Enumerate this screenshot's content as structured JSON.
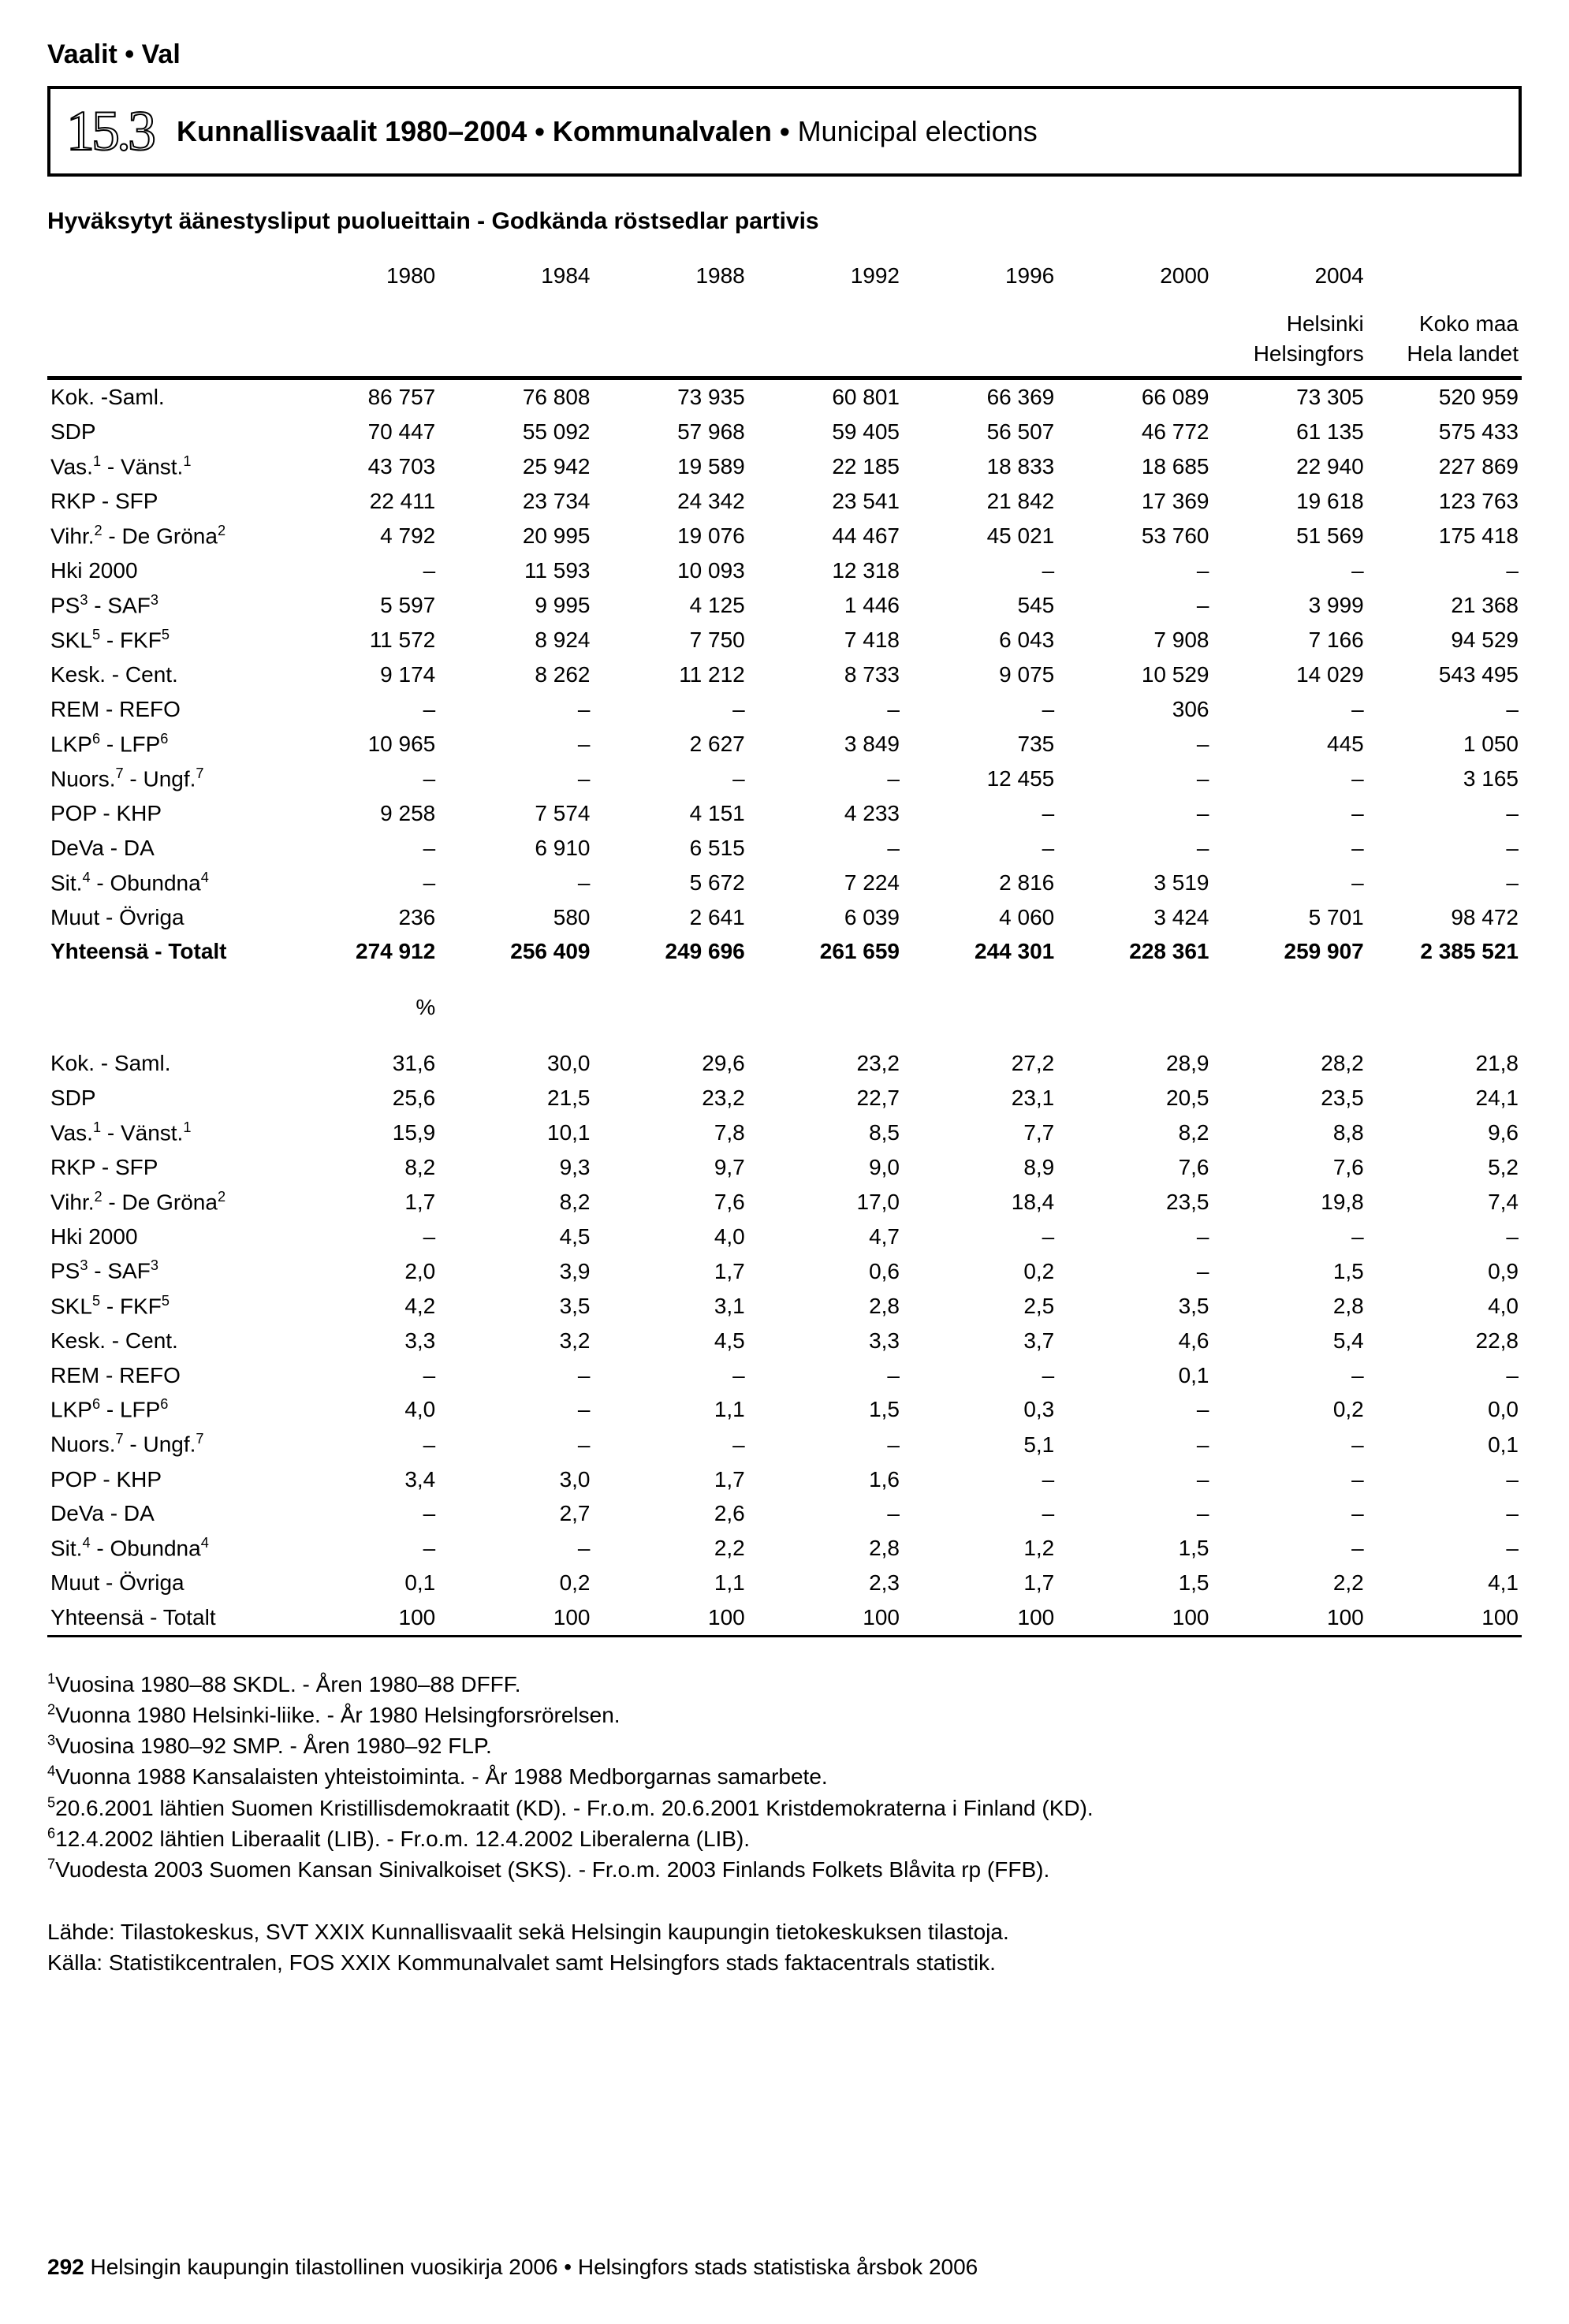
{
  "chapter_label": "Vaalit • Val",
  "section_number": "15.3",
  "title_parts": {
    "p1": "Kunnallisvaalit 1980–2004 • Kommunalvalen • ",
    "p2": "Municipal elections"
  },
  "subtitle": "Hyväksytyt äänestysliput puolueittain - Godkända röstsedlar partivis",
  "years": [
    "1980",
    "1984",
    "1988",
    "1992",
    "1996",
    "2000",
    "2004",
    ""
  ],
  "subheads": [
    "",
    "",
    "",
    "",
    "",
    "",
    "",
    "Helsinki Helsingfors",
    "Koko maa Hela landet"
  ],
  "abs_rows": [
    {
      "label": "Kok. -Saml.",
      "v": [
        "86 757",
        "76 808",
        "73 935",
        "60 801",
        "66 369",
        "66 089",
        "73 305",
        "520 959"
      ]
    },
    {
      "label": "SDP",
      "v": [
        "70 447",
        "55 092",
        "57 968",
        "59 405",
        "56 507",
        "46 772",
        "61 135",
        "575 433"
      ]
    },
    {
      "label": "Vas.¹ - Vänst.¹",
      "v": [
        "43 703",
        "25 942",
        "19 589",
        "22 185",
        "18 833",
        "18 685",
        "22 940",
        "227 869"
      ]
    },
    {
      "label": "RKP - SFP",
      "v": [
        "22 411",
        "23 734",
        "24 342",
        "23 541",
        "21 842",
        "17 369",
        "19 618",
        "123 763"
      ]
    },
    {
      "label": "Vihr.² - De Gröna²",
      "v": [
        "4 792",
        "20 995",
        "19 076",
        "44 467",
        "45 021",
        "53 760",
        "51 569",
        "175 418"
      ]
    },
    {
      "label": "Hki 2000",
      "v": [
        "–",
        "11 593",
        "10 093",
        "12 318",
        "–",
        "–",
        "–",
        "–"
      ]
    },
    {
      "label": "PS³ - SAF³",
      "v": [
        "5 597",
        "9 995",
        "4 125",
        "1 446",
        "545",
        "–",
        "3 999",
        "21 368"
      ]
    },
    {
      "label": "SKL⁵ - FKF⁵",
      "v": [
        "11 572",
        "8 924",
        "7 750",
        "7 418",
        "6 043",
        "7 908",
        "7 166",
        "94 529"
      ]
    },
    {
      "label": "Kesk. - Cent.",
      "v": [
        "9 174",
        "8 262",
        "11 212",
        "8 733",
        "9 075",
        "10 529",
        "14 029",
        "543 495"
      ]
    },
    {
      "label": "REM - REFO",
      "v": [
        "–",
        "–",
        "–",
        "–",
        "–",
        "306",
        "–",
        "–"
      ]
    },
    {
      "label": "LKP⁶ - LFP⁶",
      "v": [
        "10 965",
        "–",
        "2 627",
        "3 849",
        "735",
        "–",
        "445",
        "1 050"
      ]
    },
    {
      "label": "Nuors.⁷ - Ungf.⁷",
      "v": [
        "–",
        "–",
        "–",
        "–",
        "12 455",
        "–",
        "–",
        "3 165"
      ]
    },
    {
      "label": "POP - KHP",
      "v": [
        "9 258",
        "7 574",
        "4 151",
        "4 233",
        "–",
        "–",
        "–",
        "–"
      ]
    },
    {
      "label": "DeVa - DA",
      "v": [
        "–",
        "6 910",
        "6 515",
        "–",
        "–",
        "–",
        "–",
        "–"
      ]
    },
    {
      "label": "Sit.⁴ - Obundna⁴",
      "v": [
        "–",
        "–",
        "5 672",
        "7 224",
        "2 816",
        "3 519",
        "–",
        "–"
      ]
    },
    {
      "label": "Muut - Övriga",
      "v": [
        "236",
        "580",
        "2 641",
        "6 039",
        "4 060",
        "3 424",
        "5 701",
        "98 472"
      ]
    }
  ],
  "abs_total": {
    "label": "Yhteensä - Totalt",
    "v": [
      "274 912",
      "256 409",
      "249 696",
      "261 659",
      "244 301",
      "228 361",
      "259 907",
      "2 385 521"
    ]
  },
  "pct_label": "%",
  "pct_rows": [
    {
      "label": "Kok. - Saml.",
      "v": [
        "31,6",
        "30,0",
        "29,6",
        "23,2",
        "27,2",
        "28,9",
        "28,2",
        "21,8"
      ]
    },
    {
      "label": "SDP",
      "v": [
        "25,6",
        "21,5",
        "23,2",
        "22,7",
        "23,1",
        "20,5",
        "23,5",
        "24,1"
      ]
    },
    {
      "label": "Vas.¹ - Vänst.¹",
      "v": [
        "15,9",
        "10,1",
        "7,8",
        "8,5",
        "7,7",
        "8,2",
        "8,8",
        "9,6"
      ]
    },
    {
      "label": "RKP - SFP",
      "v": [
        "8,2",
        "9,3",
        "9,7",
        "9,0",
        "8,9",
        "7,6",
        "7,6",
        "5,2"
      ]
    },
    {
      "label": "Vihr.² - De Gröna²",
      "v": [
        "1,7",
        "8,2",
        "7,6",
        "17,0",
        "18,4",
        "23,5",
        "19,8",
        "7,4"
      ]
    },
    {
      "label": "Hki 2000",
      "v": [
        "–",
        "4,5",
        "4,0",
        "4,7",
        "–",
        "–",
        "–",
        "–"
      ]
    },
    {
      "label": "PS³ - SAF³",
      "v": [
        "2,0",
        "3,9",
        "1,7",
        "0,6",
        "0,2",
        "–",
        "1,5",
        "0,9"
      ]
    },
    {
      "label": "SKL⁵ - FKF⁵",
      "v": [
        "4,2",
        "3,5",
        "3,1",
        "2,8",
        "2,5",
        "3,5",
        "2,8",
        "4,0"
      ]
    },
    {
      "label": "Kesk. - Cent.",
      "v": [
        "3,3",
        "3,2",
        "4,5",
        "3,3",
        "3,7",
        "4,6",
        "5,4",
        "22,8"
      ]
    },
    {
      "label": "REM - REFO",
      "v": [
        "–",
        "–",
        "–",
        "–",
        "–",
        "0,1",
        "–",
        "–"
      ]
    },
    {
      "label": "LKP⁶ - LFP⁶",
      "v": [
        "4,0",
        "–",
        "1,1",
        "1,5",
        "0,3",
        "–",
        "0,2",
        "0,0"
      ]
    },
    {
      "label": "Nuors.⁷ - Ungf.⁷",
      "v": [
        "–",
        "–",
        "–",
        "–",
        "5,1",
        "–",
        "–",
        "0,1"
      ]
    },
    {
      "label": "POP - KHP",
      "v": [
        "3,4",
        "3,0",
        "1,7",
        "1,6",
        "–",
        "–",
        "–",
        "–"
      ]
    },
    {
      "label": "DeVa - DA",
      "v": [
        "–",
        "2,7",
        "2,6",
        "–",
        "–",
        "–",
        "–",
        "–"
      ]
    },
    {
      "label": "Sit.⁴ - Obundna⁴",
      "v": [
        "–",
        "–",
        "2,2",
        "2,8",
        "1,2",
        "1,5",
        "–",
        "–"
      ]
    },
    {
      "label": "Muut - Övriga",
      "v": [
        "0,1",
        "0,2",
        "1,1",
        "2,3",
        "1,7",
        "1,5",
        "2,2",
        "4,1"
      ]
    }
  ],
  "pct_total": {
    "label": "Yhteensä - Totalt",
    "v": [
      "100",
      "100",
      "100",
      "100",
      "100",
      "100",
      "100",
      "100"
    ]
  },
  "footnotes": [
    "¹Vuosina 1980–88 SKDL. - Åren 1980–88 DFFF.",
    "²Vuonna 1980 Helsinki-liike. - År 1980 Helsingforsrörelsen.",
    "³Vuosina 1980–92 SMP. - Åren 1980–92 FLP.",
    "⁴Vuonna 1988 Kansalaisten yhteistoiminta. - År 1988 Medborgarnas samarbete.",
    "⁵20.6.2001 lähtien Suomen Kristillisdemokraatit (KD). - Fr.o.m. 20.6.2001 Kristdemokraterna i Finland (KD).",
    "⁶12.4.2002 lähtien Liberaalit (LIB). - Fr.o.m. 12.4.2002 Liberalerna (LIB).",
    "⁷Vuodesta 2003 Suomen Kansan Sinivalkoiset (SKS). - Fr.o.m. 2003 Finlands Folkets Blåvita rp (FFB)."
  ],
  "sources": [
    "Lähde: Tilastokeskus, SVT XXIX Kunnallisvaalit sekä Helsingin kaupungin tietokeskuksen tilastoja.",
    "Källa: Statistikcentralen, FOS XXIX Kommunalvalet samt Helsingfors stads faktacentrals statistik."
  ],
  "page_number": "292",
  "footer_text": "Helsingin kaupungin tilastollinen vuosikirja 2006 • Helsingfors stads statistiska årsbok 2006"
}
